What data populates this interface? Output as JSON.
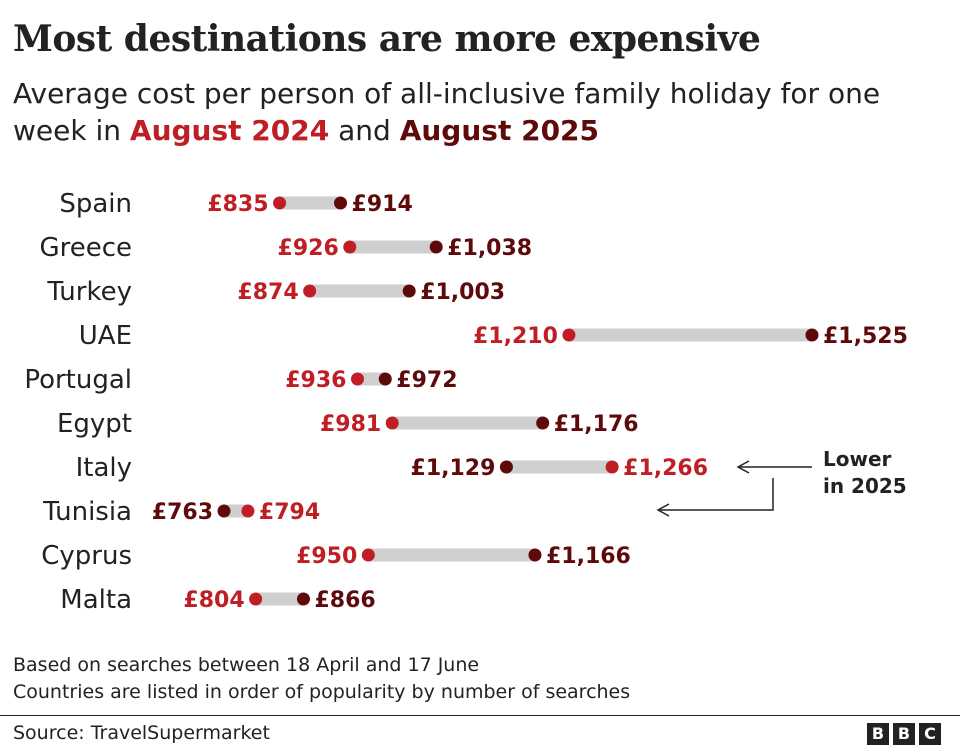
{
  "title": "Most destinations are more expensive",
  "subtitle": {
    "prefix": "Average cost per person of all-inclusive family holiday for one week in ",
    "year1": "August 2024",
    "conj": " and ",
    "year2": "August 2025"
  },
  "colors": {
    "y2024": "#be1e24",
    "y2025": "#5e0a0a",
    "connector": "#cfcfcf"
  },
  "chart_data": {
    "type": "dumbbell",
    "series": [
      {
        "name": "August 2024"
      },
      {
        "name": "August 2025"
      }
    ],
    "rows": [
      {
        "country": "Spain",
        "v2024": 835,
        "v2025": 914,
        "label2024": "£835",
        "label2025": "£914"
      },
      {
        "country": "Greece",
        "v2024": 926,
        "v2025": 1038,
        "label2024": "£926",
        "label2025": "£1,038"
      },
      {
        "country": "Turkey",
        "v2024": 874,
        "v2025": 1003,
        "label2024": "£874",
        "label2025": "£1,003"
      },
      {
        "country": "UAE",
        "v2024": 1210,
        "v2025": 1525,
        "label2024": "£1,210",
        "label2025": "£1,525"
      },
      {
        "country": "Portugal",
        "v2024": 936,
        "v2025": 972,
        "label2024": "£936",
        "label2025": "£972"
      },
      {
        "country": "Egypt",
        "v2024": 981,
        "v2025": 1176,
        "label2024": "£981",
        "label2025": "£1,176"
      },
      {
        "country": "Italy",
        "v2024": 1266,
        "v2025": 1129,
        "label2024": "£1,266",
        "label2025": "£1,129"
      },
      {
        "country": "Tunisia",
        "v2024": 794,
        "v2025": 763,
        "label2024": "£794",
        "label2025": "£763"
      },
      {
        "country": "Cyprus",
        "v2024": 950,
        "v2025": 1166,
        "label2024": "£950",
        "label2025": "£1,166"
      },
      {
        "country": "Malta",
        "v2024": 804,
        "v2025": 866,
        "label2024": "£804",
        "label2025": "£866"
      }
    ],
    "annotation": {
      "line1": "Lower",
      "line2": "in 2025",
      "targets": [
        "Italy",
        "Tunisia"
      ]
    }
  },
  "notes": [
    "Based on searches between 18 April and 17 June",
    "Countries are listed in order of popularity by number of searches"
  ],
  "source": "Source: TravelSupermarket",
  "logo": {
    "letters": [
      "B",
      "B",
      "C"
    ]
  }
}
